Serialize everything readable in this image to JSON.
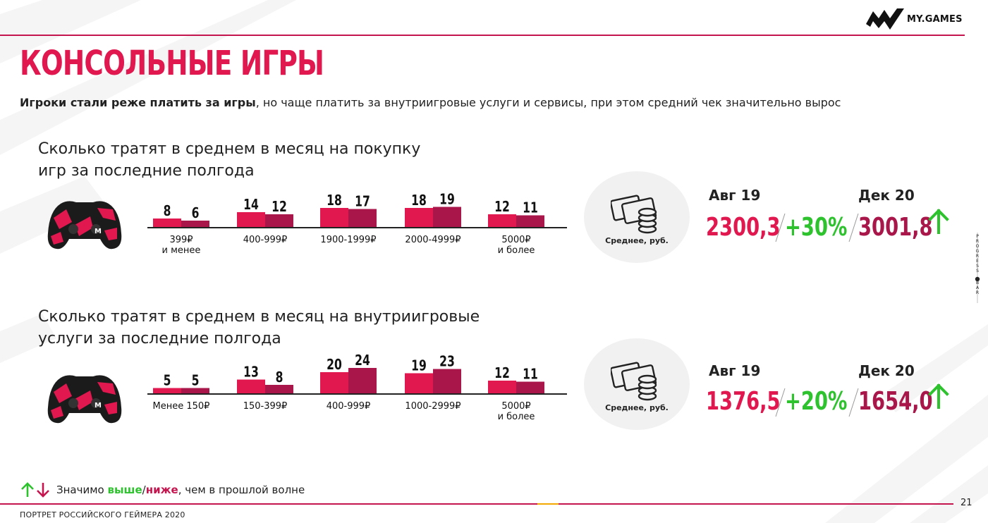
{
  "brand": {
    "logo_text": "MY.GAMES"
  },
  "header": {
    "title": "КОНСОЛЬНЫЕ ИГРЫ",
    "subtitle_bold": "Игроки стали реже платить за игры",
    "subtitle_rest": ", но чаще платить за внутриигровые услуги и сервисы, при этом средний чек значительно вырос"
  },
  "sections": [
    {
      "title_line1": "Сколько тратят в среднем в месяц на покупку",
      "title_line2": "игр за последние полгода",
      "average": {
        "label": "Среднее, руб.",
        "period_a": "Авг 19",
        "period_b": "Дек 20",
        "value_a": "2300,3",
        "delta": "+30%",
        "value_b": "3001,8"
      }
    },
    {
      "title_line1": "Сколько тратят в среднем в месяц на внутриигровые",
      "title_line2": "услуги за последние полгода",
      "average": {
        "label": "Среднее, руб.",
        "period_a": "Авг 19",
        "period_b": "Дек 20",
        "value_a": "1376,5",
        "delta": "+20%",
        "value_b": "1654,0"
      }
    }
  ],
  "chart_data": [
    {
      "type": "bar",
      "categories": [
        "399₽|и менее",
        "400-999₽",
        "1900-1999₽",
        "2000-4999₽",
        "5000₽|и более"
      ],
      "series": [
        {
          "values": [
            8,
            14,
            18,
            18,
            12
          ],
          "color": "#e0184f"
        },
        {
          "values": [
            6,
            12,
            17,
            19,
            11
          ],
          "color": "#a8164a"
        }
      ],
      "ylim": [
        0,
        25
      ]
    },
    {
      "type": "bar",
      "categories": [
        "Менее 150₽",
        "150-399₽",
        "400-999₽",
        "1000-2999₽",
        "5000₽|и более"
      ],
      "series": [
        {
          "values": [
            5,
            13,
            20,
            19,
            12
          ],
          "color": "#e0184f"
        },
        {
          "values": [
            5,
            8,
            24,
            23,
            11
          ],
          "color": "#a8164a"
        }
      ],
      "ylim": [
        0,
        25
      ]
    }
  ],
  "progress": {
    "label": "PROGRESS BAR"
  },
  "legend": {
    "prefix": "Значимо ",
    "higher": "выше",
    "separator": "/",
    "lower": "ниже",
    "suffix": ", чем в прошлой волне"
  },
  "footer": {
    "text": "ПОРТРЕТ РОССИЙСКОГО ГЕЙМЕРА 2020",
    "page_number": "21"
  },
  "colors": {
    "accent": "#e0184f",
    "accent_dark": "#a8164a",
    "positive": "#2ec22e",
    "line": "#c4154f"
  }
}
